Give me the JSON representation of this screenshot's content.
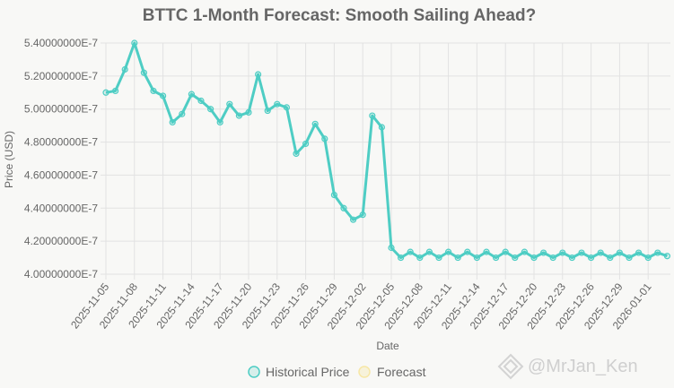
{
  "chart_data": {
    "type": "line",
    "title": "BTTC 1-Month Forecast: Smooth Sailing Ahead?",
    "xlabel": "Date",
    "ylabel": "Price (USD)",
    "ylim": [
      4e-07,
      5.4e-07
    ],
    "y_ticks": [
      "4.00000000E-7",
      "4.20000000E-7",
      "4.40000000E-7",
      "4.60000000E-7",
      "4.80000000E-7",
      "5.00000000E-7",
      "5.20000000E-7",
      "5.40000000E-7"
    ],
    "x_ticks": [
      "2025-11-05",
      "2025-11-08",
      "2025-11-11",
      "2025-11-14",
      "2025-11-17",
      "2025-11-20",
      "2025-11-23",
      "2025-11-26",
      "2025-11-29",
      "2025-12-02",
      "2025-12-05",
      "2025-12-08",
      "2025-12-11",
      "2025-12-14",
      "2025-12-17",
      "2025-12-20",
      "2025-12-23",
      "2025-12-26",
      "2025-12-29",
      "2026-01-01"
    ],
    "x_start": "2025-11-05",
    "grid": true,
    "legend_position": "bottom",
    "series": [
      {
        "name": "Historical Price",
        "color": "#4ecdc4",
        "x": [
          "2025-11-05",
          "2025-11-06",
          "2025-11-07",
          "2025-11-08",
          "2025-11-09",
          "2025-11-10",
          "2025-11-11",
          "2025-11-12",
          "2025-11-13",
          "2025-11-14",
          "2025-11-15",
          "2025-11-16",
          "2025-11-17",
          "2025-11-18",
          "2025-11-19",
          "2025-11-20",
          "2025-11-21",
          "2025-11-22",
          "2025-11-23",
          "2025-11-24",
          "2025-11-25",
          "2025-11-26",
          "2025-11-27",
          "2025-11-28",
          "2025-11-29",
          "2025-11-30",
          "2025-12-01",
          "2025-12-02",
          "2025-12-03",
          "2025-12-04",
          "2025-12-05",
          "2025-12-06",
          "2025-12-07",
          "2025-12-08",
          "2025-12-09",
          "2025-12-10",
          "2025-12-11",
          "2025-12-12",
          "2025-12-13",
          "2025-12-14",
          "2025-12-15",
          "2025-12-16",
          "2025-12-17",
          "2025-12-18",
          "2025-12-19",
          "2025-12-20",
          "2025-12-21",
          "2025-12-22",
          "2025-12-23",
          "2025-12-24",
          "2025-12-25",
          "2025-12-26",
          "2025-12-27",
          "2025-12-28",
          "2025-12-29",
          "2025-12-30",
          "2025-12-31",
          "2026-01-01",
          "2026-01-02",
          "2026-01-03"
        ],
        "values": [
          5.1e-07,
          5.11e-07,
          5.24e-07,
          5.4e-07,
          5.22e-07,
          5.11e-07,
          5.08e-07,
          4.92e-07,
          4.97e-07,
          5.09e-07,
          5.05e-07,
          5e-07,
          4.92e-07,
          5.03e-07,
          4.96e-07,
          4.98e-07,
          5.21e-07,
          4.99e-07,
          5.03e-07,
          5.01e-07,
          4.73e-07,
          4.79e-07,
          4.91e-07,
          4.82e-07,
          4.48e-07,
          4.4e-07,
          4.33e-07,
          4.36e-07,
          4.96e-07,
          4.89e-07,
          4.16e-07,
          4.1e-07,
          4.135e-07,
          4.1e-07,
          4.135e-07,
          4.1e-07,
          4.135e-07,
          4.1e-07,
          4.135e-07,
          4.1e-07,
          4.135e-07,
          4.1e-07,
          4.135e-07,
          4.1e-07,
          4.135e-07,
          4.1e-07,
          4.13e-07,
          4.1e-07,
          4.13e-07,
          4.1e-07,
          4.13e-07,
          4.1e-07,
          4.13e-07,
          4.1e-07,
          4.13e-07,
          4.1e-07,
          4.13e-07,
          4.1e-07,
          4.13e-07,
          4.11e-07
        ]
      },
      {
        "name": "Forecast",
        "color": "#f7e7a6",
        "x": [],
        "values": []
      }
    ]
  },
  "watermark": {
    "text": "@MrJan_Ken"
  }
}
